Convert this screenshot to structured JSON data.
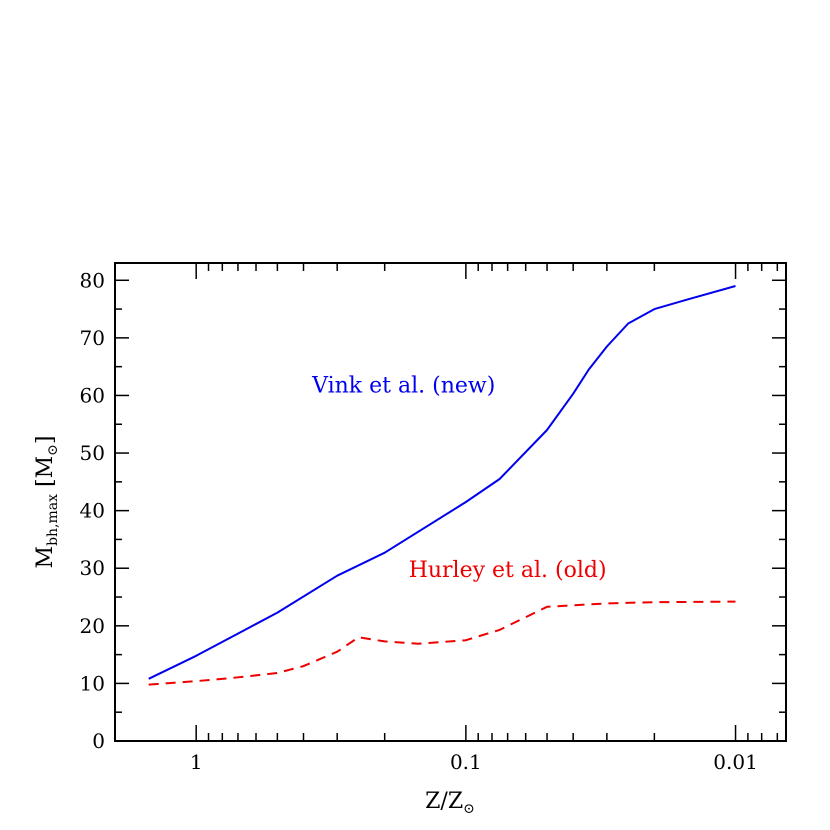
{
  "chart_data": {
    "type": "line",
    "title": "",
    "xlabel": {
      "base": "Z/Z",
      "sub": "⊙"
    },
    "ylabel": {
      "base": "M",
      "sub": "bh,max",
      "unit_open": " [M",
      "unit_sub": "⊙",
      "unit_close": "]"
    },
    "x_scale": "log",
    "x_reversed": true,
    "xlim": [
      2.0,
      0.0065
    ],
    "ylim": [
      0,
      83
    ],
    "x_ticks": [
      {
        "value": 1,
        "label": "1"
      },
      {
        "value": 0.1,
        "label": "0.1"
      },
      {
        "value": 0.01,
        "label": "0.01"
      }
    ],
    "y_ticks": [
      {
        "value": 0,
        "label": "0"
      },
      {
        "value": 10,
        "label": "10"
      },
      {
        "value": 20,
        "label": "20"
      },
      {
        "value": 30,
        "label": "30"
      },
      {
        "value": 40,
        "label": "40"
      },
      {
        "value": 50,
        "label": "50"
      },
      {
        "value": 60,
        "label": "60"
      },
      {
        "value": 70,
        "label": "70"
      },
      {
        "value": 80,
        "label": "80"
      }
    ],
    "grid": false,
    "series": [
      {
        "name": "Vink et al. (new)",
        "color": "#0000ee",
        "style": "solid",
        "x": [
          1.5,
          1.0,
          0.75,
          0.5,
          0.3,
          0.2,
          0.1,
          0.075,
          0.05,
          0.04,
          0.035,
          0.03,
          0.025,
          0.02,
          0.015,
          0.01
        ],
        "y": [
          10.8,
          14.8,
          17.9,
          22.3,
          28.7,
          32.7,
          41.5,
          45.5,
          54.0,
          60.3,
          64.5,
          68.5,
          72.5,
          75.0,
          76.7,
          79.0
        ]
      },
      {
        "name": "Hurley et al. (old)",
        "color": "#ee0000",
        "style": "dashed",
        "x": [
          1.5,
          1.0,
          0.75,
          0.5,
          0.4,
          0.3,
          0.25,
          0.2,
          0.15,
          0.1,
          0.075,
          0.05,
          0.03,
          0.02,
          0.01
        ],
        "y": [
          9.8,
          10.4,
          10.9,
          11.8,
          13.0,
          15.5,
          18.0,
          17.3,
          16.9,
          17.5,
          19.3,
          23.3,
          23.9,
          24.1,
          24.2
        ]
      }
    ],
    "annotations": [
      {
        "text": "Vink et al. (new)",
        "series": 0,
        "x": 0.17,
        "y": 60.5
      },
      {
        "text": "Hurley et al. (old)",
        "series": 1,
        "x": 0.07,
        "y": 28.5
      }
    ]
  }
}
